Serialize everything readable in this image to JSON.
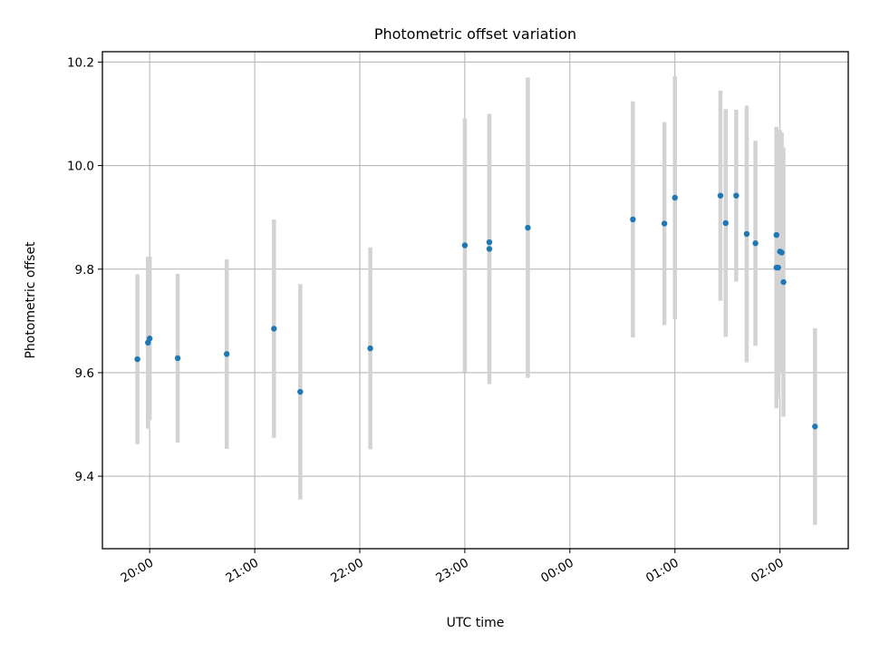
{
  "chart_data": {
    "type": "scatter",
    "title": "Photometric offset variation",
    "xlabel": "UTC time",
    "ylabel": "Photometric offset",
    "x_unit": "hours after 19:00 UTC on the first night (axis labels are clock times)",
    "xlim": [
      "19:33",
      "02:39"
    ],
    "ylim": [
      9.26,
      10.22
    ],
    "grid": true,
    "x_ticks": [
      "20:00",
      "21:00",
      "22:00",
      "23:00",
      "00:00",
      "01:00",
      "02:00"
    ],
    "y_ticks": [
      "9.4",
      "9.6",
      "9.8",
      "10.0",
      "10.2"
    ],
    "colors": {
      "point": "#1f77b4",
      "errorbar": "#d3d3d3",
      "grid": "#b0b0b0"
    },
    "points": [
      {
        "time": "19:53",
        "y": 9.626,
        "yerr": 0.164
      },
      {
        "time": "19:59",
        "y": 9.658,
        "yerr": 0.166
      },
      {
        "time": "20:00",
        "y": 9.666,
        "yerr": 0.158
      },
      {
        "time": "20:16",
        "y": 9.628,
        "yerr": 0.163
      },
      {
        "time": "20:44",
        "y": 9.636,
        "yerr": 0.183
      },
      {
        "time": "21:11",
        "y": 9.685,
        "yerr": 0.211
      },
      {
        "time": "21:26",
        "y": 9.563,
        "yerr": 0.208
      },
      {
        "time": "22:06",
        "y": 9.647,
        "yerr": 0.195
      },
      {
        "time": "23:00",
        "y": 9.846,
        "yerr": 0.245
      },
      {
        "time": "23:14",
        "y": 9.839,
        "yerr": 0.261
      },
      {
        "time": "23:14",
        "y": 9.852,
        "yerr": 0.245
      },
      {
        "time": "23:36",
        "y": 9.88,
        "yerr": 0.29
      },
      {
        "time": "00:36",
        "y": 9.896,
        "yerr": 0.228
      },
      {
        "time": "00:54",
        "y": 9.888,
        "yerr": 0.196
      },
      {
        "time": "01:00",
        "y": 9.938,
        "yerr": 0.235
      },
      {
        "time": "01:26",
        "y": 9.942,
        "yerr": 0.203
      },
      {
        "time": "01:29",
        "y": 9.889,
        "yerr": 0.22
      },
      {
        "time": "01:35",
        "y": 9.942,
        "yerr": 0.166
      },
      {
        "time": "01:41",
        "y": 9.868,
        "yerr": 0.248
      },
      {
        "time": "01:46",
        "y": 9.85,
        "yerr": 0.198
      },
      {
        "time": "01:58",
        "y": 9.866,
        "yerr": 0.208
      },
      {
        "time": "01:58",
        "y": 9.803,
        "yerr": 0.272
      },
      {
        "time": "01:59",
        "y": 9.803,
        "yerr": 0.252
      },
      {
        "time": "02:00",
        "y": 9.834,
        "yerr": 0.235
      },
      {
        "time": "02:01",
        "y": 9.832,
        "yerr": 0.232
      },
      {
        "time": "02:02",
        "y": 9.775,
        "yerr": 0.26
      },
      {
        "time": "02:20",
        "y": 9.496,
        "yerr": 0.19
      }
    ]
  }
}
